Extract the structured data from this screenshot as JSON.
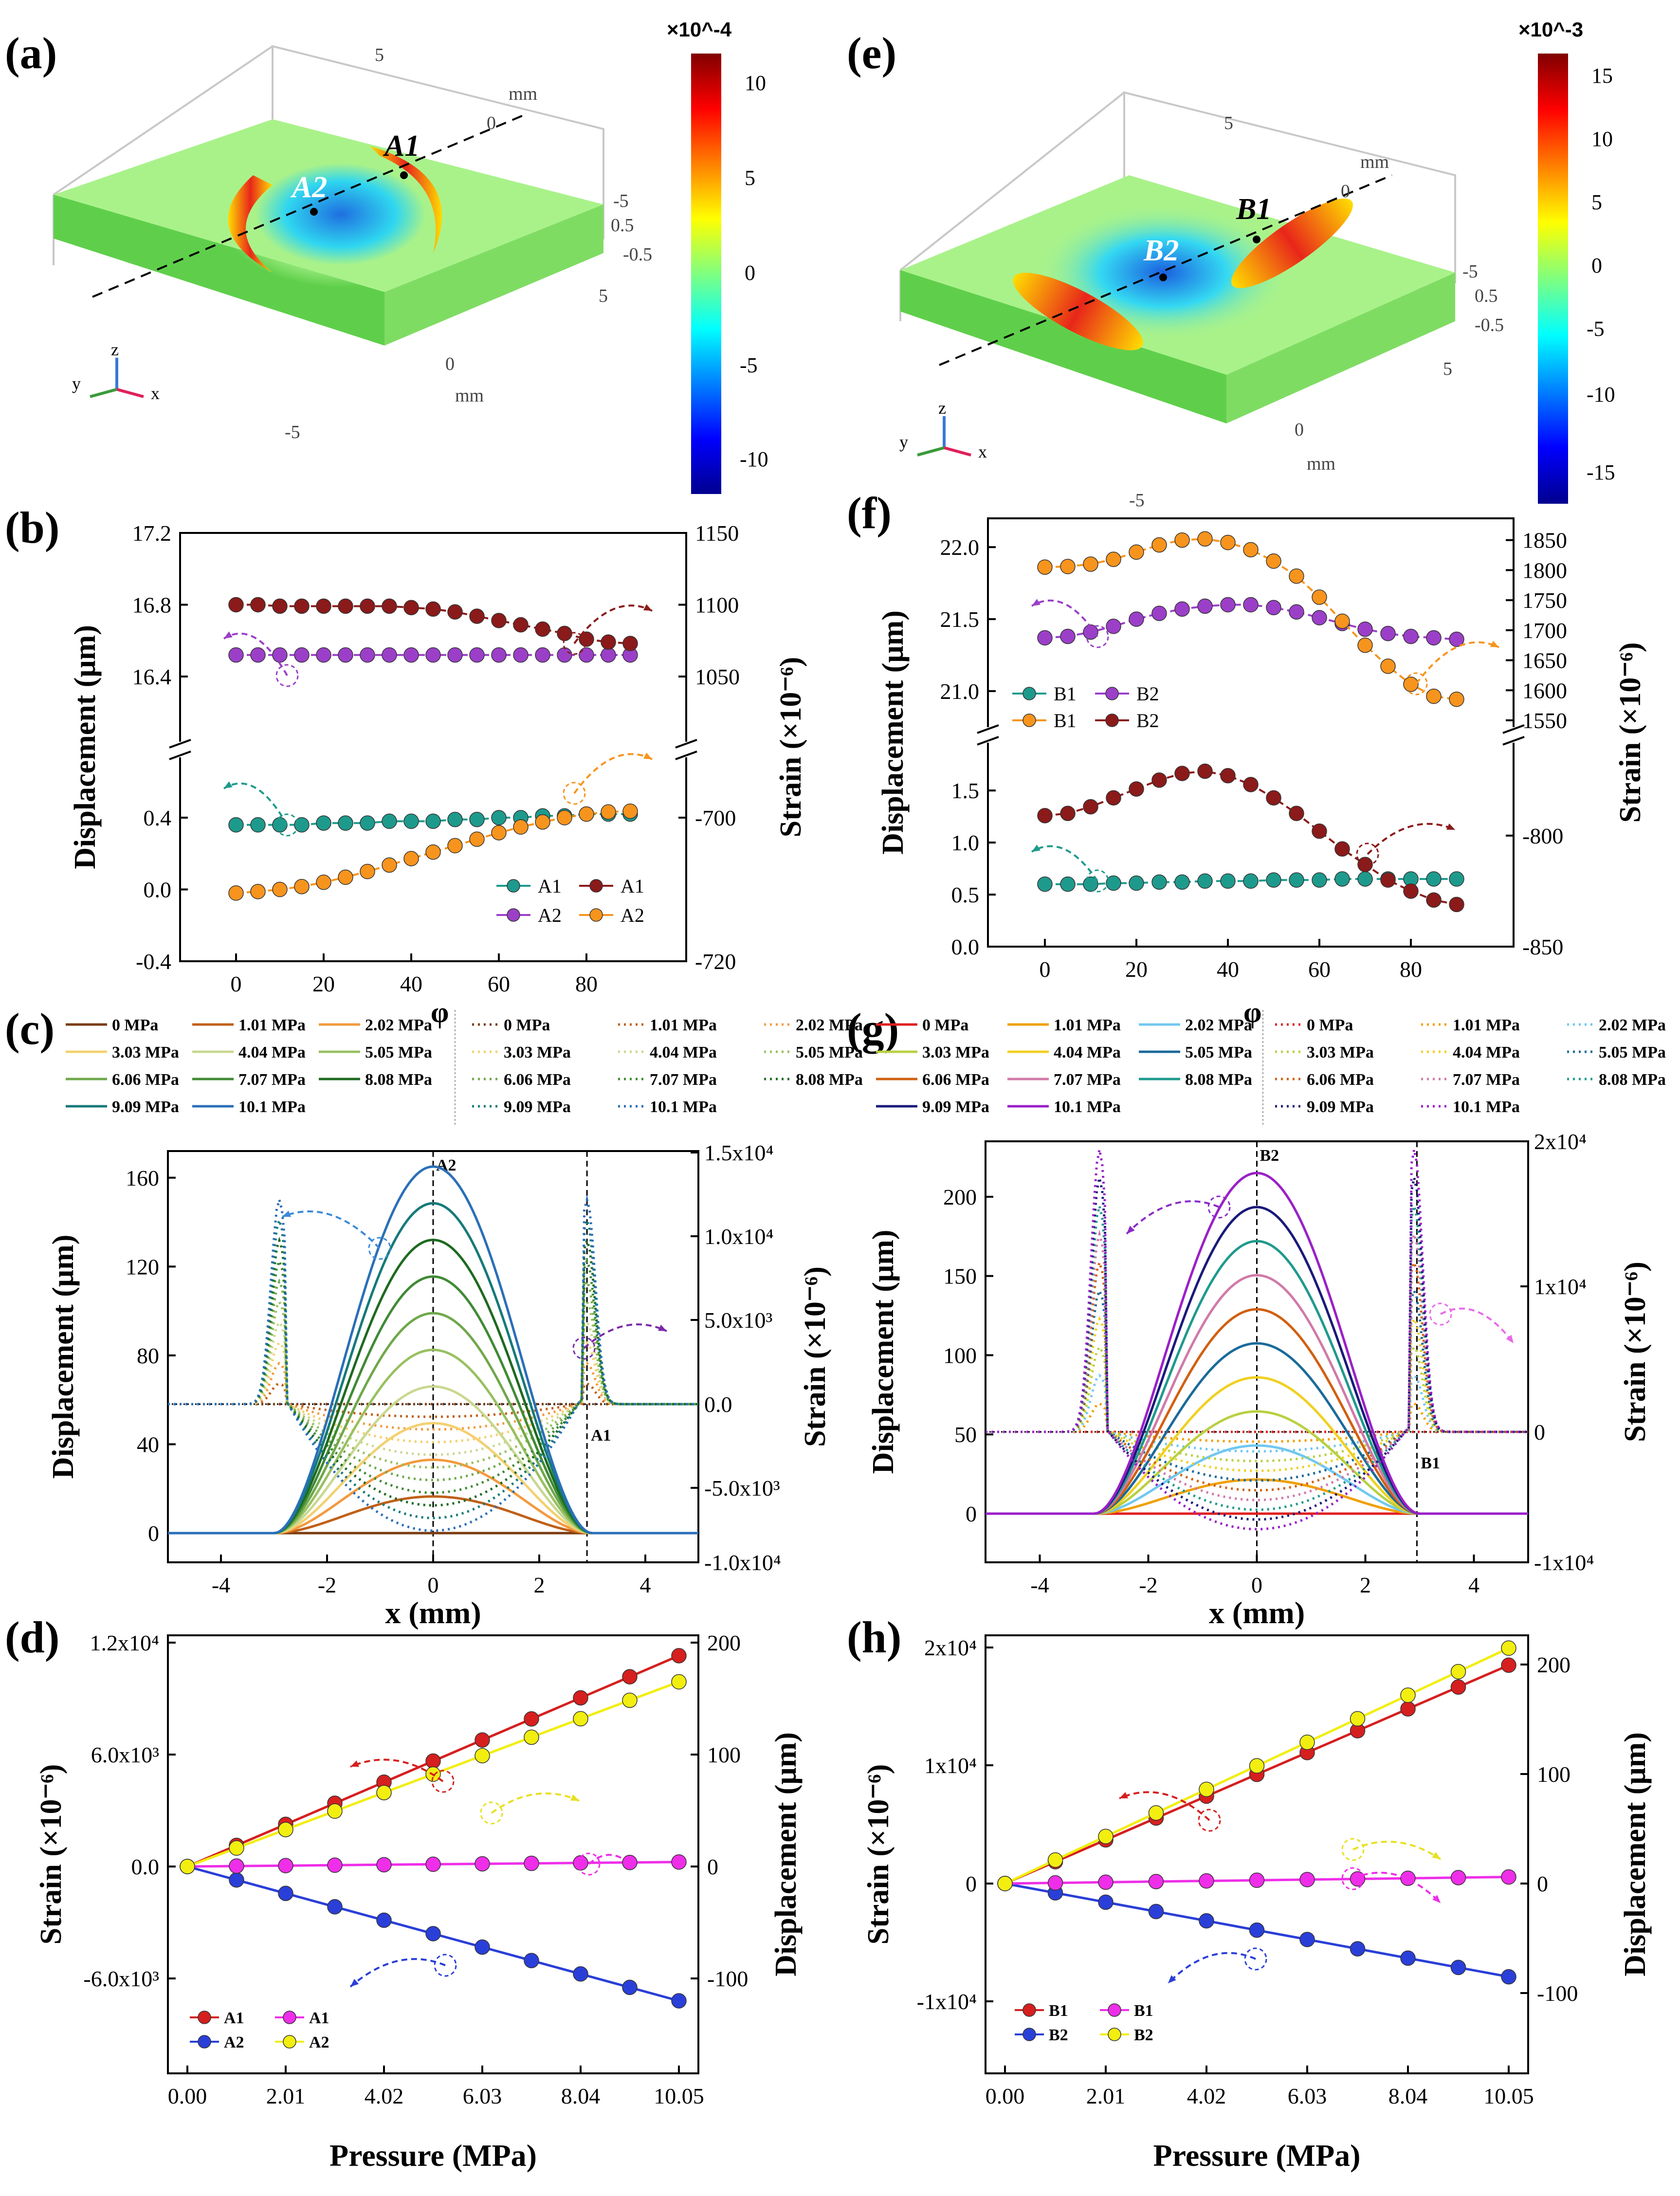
{
  "colors": {
    "axis": "#000000",
    "teal": "#1e9a8c",
    "purple": "#9b3fc8",
    "orange": "#f7941d",
    "darkred": "#8b1a1a",
    "red": "#d61f1f",
    "magenta": "#ee2ee8",
    "blue": "#2a3fd8",
    "yellow": "#f2ee10",
    "plate": "#a9f28a",
    "plateDark": "#5fcf4b"
  },
  "panels": {
    "a": {
      "label": "(a)",
      "colorbar": {
        "exponent": "×10^-4",
        "ticks": [
          "10",
          "5",
          "0",
          "-5",
          "-10"
        ]
      },
      "points": [
        "A1",
        "A2"
      ],
      "axisTicks": [
        "5",
        "0",
        "-5",
        "5",
        "0",
        "-5"
      ],
      "unit": "mm",
      "z1": "0.5",
      "z2": "-0.5"
    },
    "e": {
      "label": "(e)",
      "colorbar": {
        "exponent": "×10^-3",
        "ticks": [
          "15",
          "10",
          "5",
          "0",
          "-5",
          "-10",
          "-15"
        ]
      },
      "points": [
        "B1",
        "B2"
      ],
      "axisTicks": [
        "5",
        "0",
        "-5",
        "5",
        "0",
        "-5"
      ],
      "unit": "mm",
      "z1": "0.5",
      "z2": "-0.5"
    },
    "c_xlabel": "x (mm)",
    "phi_label": "φ",
    "pressure_label": "Pressure (MPa)"
  },
  "chart_data": [
    {
      "id": "b",
      "label": "(b)",
      "type": "line",
      "xlabel": "",
      "ylabel_left": "Displacement (μm)",
      "ylabel_right": "Strain (×10⁻⁶)",
      "x": [
        0,
        5,
        10,
        15,
        20,
        25,
        30,
        35,
        40,
        45,
        50,
        55,
        60,
        65,
        70,
        75,
        80,
        85,
        90
      ],
      "xticks": [
        "0",
        "20",
        "40",
        "60",
        "80"
      ],
      "left_upper_ticks": [
        "17.2",
        "16.8",
        "16.4"
      ],
      "left_lower_ticks": [
        "0.4",
        "0.0",
        "-0.4"
      ],
      "right_upper_ticks": [
        "1150",
        "1100",
        "1050"
      ],
      "right_lower_ticks": [
        "-700",
        "-720"
      ],
      "series": [
        {
          "name": "A1",
          "axis": "left",
          "kind": "displacement",
          "values": [
            0.36,
            0.36,
            0.36,
            0.36,
            0.37,
            0.37,
            0.37,
            0.38,
            0.38,
            0.38,
            0.39,
            0.39,
            0.4,
            0.4,
            0.41,
            0.41,
            0.42,
            0.42,
            0.42
          ]
        },
        {
          "name": "A2",
          "axis": "left",
          "kind": "displacement",
          "values": [
            16.52,
            16.52,
            16.52,
            16.52,
            16.52,
            16.52,
            16.52,
            16.52,
            16.52,
            16.52,
            16.52,
            16.52,
            16.52,
            16.52,
            16.52,
            16.52,
            16.52,
            16.52,
            16.52
          ]
        },
        {
          "name": "A1",
          "axis": "right",
          "kind": "strain",
          "values": [
            1100,
            1100,
            1099,
            1099,
            1099,
            1099,
            1099,
            1099,
            1098,
            1097,
            1095,
            1092,
            1089,
            1086,
            1083,
            1080,
            1076,
            1074,
            1073
          ]
        },
        {
          "name": "A2",
          "axis": "right",
          "kind": "strain",
          "values": [
            -710.5,
            -710.3,
            -710.0,
            -709.6,
            -709.0,
            -708.3,
            -707.5,
            -706.6,
            -705.7,
            -704.8,
            -703.9,
            -703.0,
            -702.1,
            -701.3,
            -700.6,
            -700.0,
            -699.5,
            -699.2,
            -699.1
          ]
        }
      ],
      "legend": [
        "A1",
        "A1",
        "A2",
        "A2"
      ]
    },
    {
      "id": "f",
      "label": "(f)",
      "type": "line",
      "ylabel_left": "Displacement (μm)",
      "ylabel_right": "Strain (×10⁻⁶)",
      "x": [
        0,
        5,
        10,
        15,
        20,
        25,
        30,
        35,
        40,
        45,
        50,
        55,
        60,
        65,
        70,
        75,
        80,
        85,
        90
      ],
      "xticks": [
        "0",
        "20",
        "40",
        "60",
        "80"
      ],
      "left_upper_ticks": [
        "22.0",
        "21.5",
        "21.0"
      ],
      "left_lower_ticks": [
        "1.5",
        "1.0",
        "0.5",
        "0.0"
      ],
      "right_upper_ticks": [
        "1850",
        "1800",
        "1750",
        "1700",
        "1650",
        "1600",
        "1550"
      ],
      "right_lower_ticks": [
        "-800",
        "-850"
      ],
      "series": [
        {
          "name": "B1",
          "axis": "left",
          "kind": "displacement",
          "values": [
            0.6,
            0.6,
            0.6,
            0.61,
            0.61,
            0.62,
            0.62,
            0.63,
            0.63,
            0.63,
            0.64,
            0.64,
            0.64,
            0.65,
            0.65,
            0.65,
            0.65,
            0.65,
            0.65
          ]
        },
        {
          "name": "B2",
          "axis": "left",
          "kind": "displacement",
          "values": [
            21.37,
            21.38,
            21.41,
            21.45,
            21.5,
            21.54,
            21.57,
            21.59,
            21.6,
            21.6,
            21.58,
            21.55,
            21.51,
            21.47,
            21.43,
            21.4,
            21.38,
            21.37,
            21.36
          ]
        },
        {
          "name": "B1",
          "axis": "right",
          "kind": "strain",
          "values": [
            1805,
            1806,
            1810,
            1818,
            1830,
            1842,
            1850,
            1852,
            1846,
            1834,
            1815,
            1790,
            1755,
            1715,
            1675,
            1640,
            1610,
            1590,
            1585
          ]
        },
        {
          "name": "B2",
          "axis": "right",
          "kind": "strain",
          "values": [
            -791,
            -790,
            -787,
            -783,
            -779,
            -775,
            -772,
            -771,
            -773,
            -777,
            -783,
            -790,
            -798,
            -806,
            -813,
            -820,
            -825,
            -829,
            -831
          ]
        }
      ],
      "legend": [
        "B1",
        "B2",
        "B1",
        "B2"
      ]
    },
    {
      "id": "c",
      "label": "(c)",
      "type": "line",
      "xlabel": "x (mm)",
      "ylabel_left": "Displacement (μm)",
      "ylabel_right": "Strain (×10⁻⁶)",
      "xlim": [
        -5,
        5
      ],
      "xticks": [
        "-4",
        "-2",
        "0",
        "2",
        "4"
      ],
      "yticks_left": [
        "0",
        "40",
        "80",
        "120",
        "160"
      ],
      "yticks_right": [
        "1.5x10⁴",
        "1.0x10⁴",
        "5.0x10³",
        "0.0",
        "-5.0x10³",
        "-1.0x10⁴"
      ],
      "pressures": [
        "0 MPa",
        "1.01 MPa",
        "2.02 MPa",
        "3.03 MPa",
        "4.04 MPa",
        "5.05 MPa",
        "6.06 MPa",
        "7.07 MPa",
        "8.08 MPa",
        "9.09 MPa",
        "10.1 MPa"
      ],
      "center_displacement": [
        0,
        16.5,
        33,
        49.5,
        66,
        82.5,
        99,
        115.5,
        132,
        148.5,
        165
      ],
      "radius": 3.0,
      "marker_left": "A2",
      "marker_right": "A1",
      "marker_right_x": 2.9
    },
    {
      "id": "g",
      "label": "(g)",
      "type": "line",
      "xlabel": "x (mm)",
      "ylabel_left": "Displacement (μm)",
      "ylabel_right": "Strain (×10⁻⁶)",
      "xlim": [
        -5,
        5
      ],
      "xticks": [
        "-4",
        "-2",
        "0",
        "2",
        "4"
      ],
      "yticks_left": [
        "0",
        "50",
        "100",
        "150",
        "200"
      ],
      "yticks_right": [
        "2x10⁴",
        "1x10⁴",
        "0",
        "-1x10⁴"
      ],
      "pressures": [
        "0 MPa",
        "1.01 MPa",
        "2.02 MPa",
        "3.03 MPa",
        "4.04 MPa",
        "5.05 MPa",
        "6.06 MPa",
        "7.07 MPa",
        "8.08 MPa",
        "9.09 MPa",
        "10.1 MPa"
      ],
      "center_displacement": [
        0,
        21.5,
        43,
        64.5,
        86,
        107.5,
        129,
        150.5,
        172,
        193.5,
        215
      ],
      "radius": 3.0,
      "marker_left": "B2",
      "marker_right": "B1",
      "marker_right_x": 2.95
    },
    {
      "id": "d",
      "label": "(d)",
      "type": "line",
      "xlabel": "Pressure (MPa)",
      "ylabel_left": "Strain (×10⁻⁶)",
      "ylabel_right": "Displacement (μm)",
      "x": [
        0,
        1.005,
        2.01,
        3.015,
        4.02,
        5.025,
        6.03,
        7.035,
        8.04,
        9.045,
        10.05
      ],
      "xticks": [
        "0.00",
        "2.01",
        "4.02",
        "6.03",
        "8.04",
        "10.05"
      ],
      "yticks_left": [
        "1.2x10⁴",
        "6.0x10³",
        "0.0",
        "-6.0x10³"
      ],
      "yticks_right": [
        "200",
        "100",
        "0",
        "-100"
      ],
      "series": [
        {
          "name": "A1",
          "axis": "left",
          "values": [
            0,
            1130,
            2260,
            3390,
            4520,
            5650,
            6780,
            7910,
            9040,
            10170,
            11300
          ]
        },
        {
          "name": "A2",
          "axis": "left",
          "values": [
            0,
            -720,
            -1440,
            -2160,
            -2880,
            -3600,
            -4320,
            -5040,
            -5760,
            -6480,
            -7200
          ]
        },
        {
          "name": "A1",
          "axis": "right",
          "values": [
            0,
            0.4,
            0.8,
            1.2,
            1.6,
            2.0,
            2.4,
            2.8,
            3.2,
            3.6,
            4.0
          ]
        },
        {
          "name": "A2",
          "axis": "right",
          "values": [
            0,
            16.5,
            33,
            49.5,
            66,
            82.5,
            99,
            115.5,
            132,
            148.5,
            165
          ]
        }
      ],
      "legend": [
        "A1",
        "A1",
        "A2",
        "A2"
      ]
    },
    {
      "id": "h",
      "label": "(h)",
      "type": "line",
      "xlabel": "Pressure (MPa)",
      "ylabel_left": "Strain (×10⁻⁶)",
      "ylabel_right": "Displacement (μm)",
      "x": [
        0,
        1.005,
        2.01,
        3.015,
        4.02,
        5.025,
        6.03,
        7.035,
        8.04,
        9.045,
        10.05
      ],
      "xticks": [
        "0.00",
        "2.01",
        "4.02",
        "6.03",
        "8.04",
        "10.05"
      ],
      "yticks_left": [
        "2x10⁴",
        "1x10⁴",
        "0",
        "-1x10⁴"
      ],
      "yticks_right": [
        "200",
        "100",
        "0",
        "-100"
      ],
      "series": [
        {
          "name": "B1",
          "axis": "left",
          "values": [
            0,
            1850,
            3700,
            5550,
            7400,
            9250,
            11100,
            12950,
            14800,
            16650,
            18500
          ]
        },
        {
          "name": "B2",
          "axis": "left",
          "values": [
            0,
            -790,
            -1580,
            -2370,
            -3160,
            -3950,
            -4740,
            -5530,
            -6320,
            -7110,
            -7900
          ]
        },
        {
          "name": "B1",
          "axis": "right",
          "values": [
            0,
            0.6,
            1.2,
            1.8,
            2.4,
            3.0,
            3.6,
            4.2,
            4.8,
            5.4,
            6.0
          ]
        },
        {
          "name": "B2",
          "axis": "right",
          "values": [
            0,
            21.5,
            43,
            64.5,
            86,
            107.5,
            129,
            150.5,
            172,
            193.5,
            215
          ]
        }
      ],
      "legend": [
        "B1",
        "B1",
        "B2",
        "B2"
      ]
    }
  ]
}
